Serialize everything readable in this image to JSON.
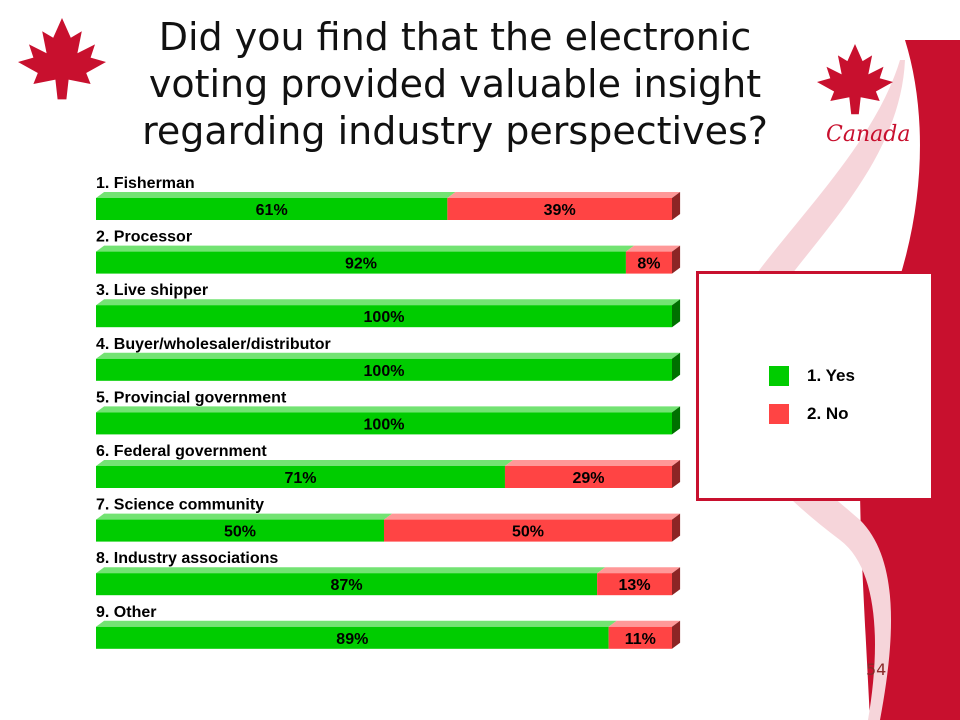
{
  "slide": {
    "title": "Did you find that the electronic voting provided valuable insight regarding industry perspectives?",
    "page_number": "54",
    "brand_text": "Canada"
  },
  "colors": {
    "yes": "#00cc00",
    "no": "#ff4444",
    "brand_red": "#c8102e"
  },
  "chart_data": {
    "type": "bar",
    "stacked": true,
    "orientation": "horizontal",
    "categories": [
      "1. Fisherman",
      "2. Processor",
      "3. Live shipper",
      "4. Buyer/wholesaler/distributor",
      "5. Provincial government",
      "6. Federal government",
      "7. Science community",
      "8. Industry associations",
      "9. Other"
    ],
    "series": [
      {
        "name": "1. Yes",
        "values": [
          61,
          92,
          100,
          100,
          100,
          71,
          50,
          87,
          89
        ]
      },
      {
        "name": "2. No",
        "values": [
          39,
          8,
          0,
          0,
          0,
          29,
          50,
          13,
          11
        ]
      }
    ],
    "value_format": "percent",
    "xlim": [
      0,
      100
    ],
    "legend_position": "right",
    "grid": false
  }
}
